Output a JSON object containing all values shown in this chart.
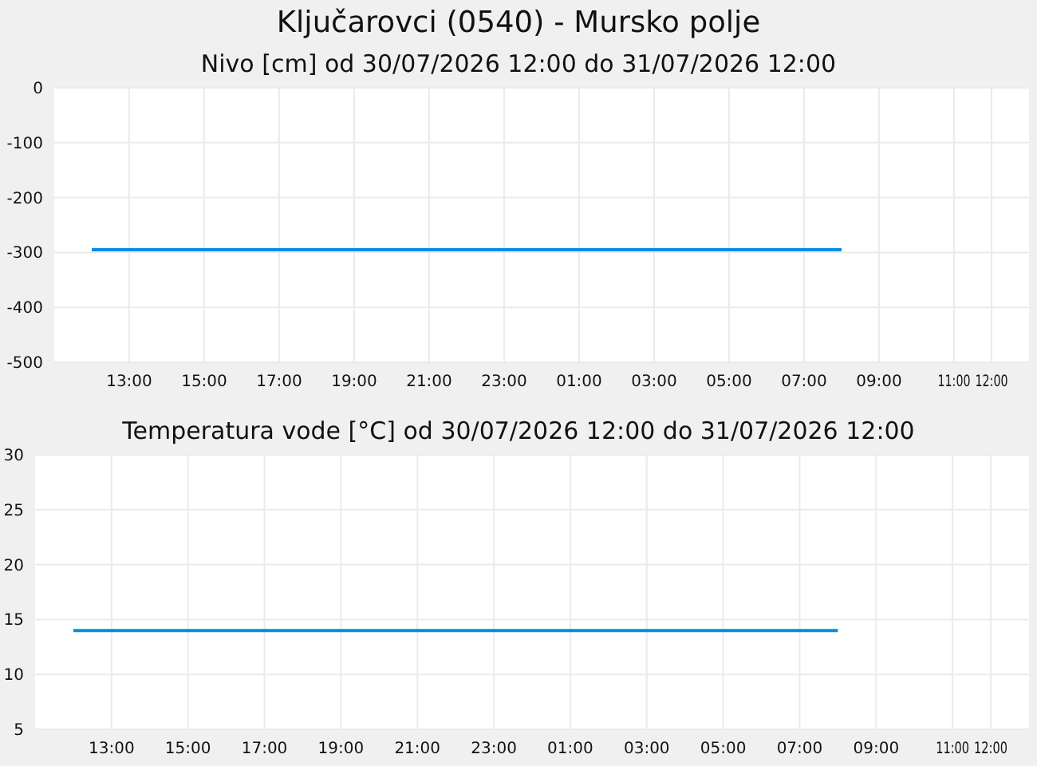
{
  "chart_data": [
    {
      "type": "line",
      "title": "Ključarovci (0540) - Mursko polje",
      "subtitle": "Nivo [cm] od 30/07/2026 12:00 do 31/07/2026 12:00",
      "x": [
        "2026-07-30T12:00",
        "2026-07-31T08:00"
      ],
      "series": [
        {
          "color": "#008fe5",
          "values": [
            -295,
            -295
          ]
        }
      ],
      "xlim": [
        "2026-07-30T11:00",
        "2026-07-31T13:00"
      ],
      "xticks": [
        {
          "value": "2026-07-30T13:00",
          "label": "13:00"
        },
        {
          "value": "2026-07-30T15:00",
          "label": "15:00"
        },
        {
          "value": "2026-07-30T17:00",
          "label": "17:00"
        },
        {
          "value": "2026-07-30T19:00",
          "label": "19:00"
        },
        {
          "value": "2026-07-30T21:00",
          "label": "21:00"
        },
        {
          "value": "2026-07-30T23:00",
          "label": "23:00"
        },
        {
          "value": "2026-07-31T01:00",
          "label": "01:00"
        },
        {
          "value": "2026-07-31T03:00",
          "label": "03:00"
        },
        {
          "value": "2026-07-31T05:00",
          "label": "05:00"
        },
        {
          "value": "2026-07-31T07:00",
          "label": "07:00"
        },
        {
          "value": "2026-07-31T09:00",
          "label": "09:00"
        },
        {
          "value": "2026-07-31T11:00",
          "label": "11:00"
        },
        {
          "value": "2026-07-31T12:00",
          "label": "12:00"
        }
      ],
      "ylim": [
        -500,
        0
      ],
      "yticks": [
        -500,
        -400,
        -300,
        -200,
        -100,
        0
      ],
      "grid": true
    },
    {
      "type": "line",
      "title": "Temperatura vode [°C] od 30/07/2026 12:00 do 31/07/2026 12:00",
      "x": [
        "2026-07-30T12:00",
        "2026-07-31T08:00"
      ],
      "series": [
        {
          "color": "#008fe5",
          "values": [
            14,
            14
          ]
        }
      ],
      "xlim": [
        "2026-07-30T11:00",
        "2026-07-31T13:00"
      ],
      "xticks": [
        {
          "value": "2026-07-30T13:00",
          "label": "13:00"
        },
        {
          "value": "2026-07-30T15:00",
          "label": "15:00"
        },
        {
          "value": "2026-07-30T17:00",
          "label": "17:00"
        },
        {
          "value": "2026-07-30T19:00",
          "label": "19:00"
        },
        {
          "value": "2026-07-30T21:00",
          "label": "21:00"
        },
        {
          "value": "2026-07-30T23:00",
          "label": "23:00"
        },
        {
          "value": "2026-07-31T01:00",
          "label": "01:00"
        },
        {
          "value": "2026-07-31T03:00",
          "label": "03:00"
        },
        {
          "value": "2026-07-31T05:00",
          "label": "05:00"
        },
        {
          "value": "2026-07-31T07:00",
          "label": "07:00"
        },
        {
          "value": "2026-07-31T09:00",
          "label": "09:00"
        },
        {
          "value": "2026-07-31T11:00",
          "label": "11:00"
        },
        {
          "value": "2026-07-31T12:00",
          "label": "12:00"
        }
      ],
      "ylim": [
        5,
        30
      ],
      "yticks": [
        5,
        10,
        15,
        20,
        25,
        30
      ],
      "grid": true
    }
  ]
}
